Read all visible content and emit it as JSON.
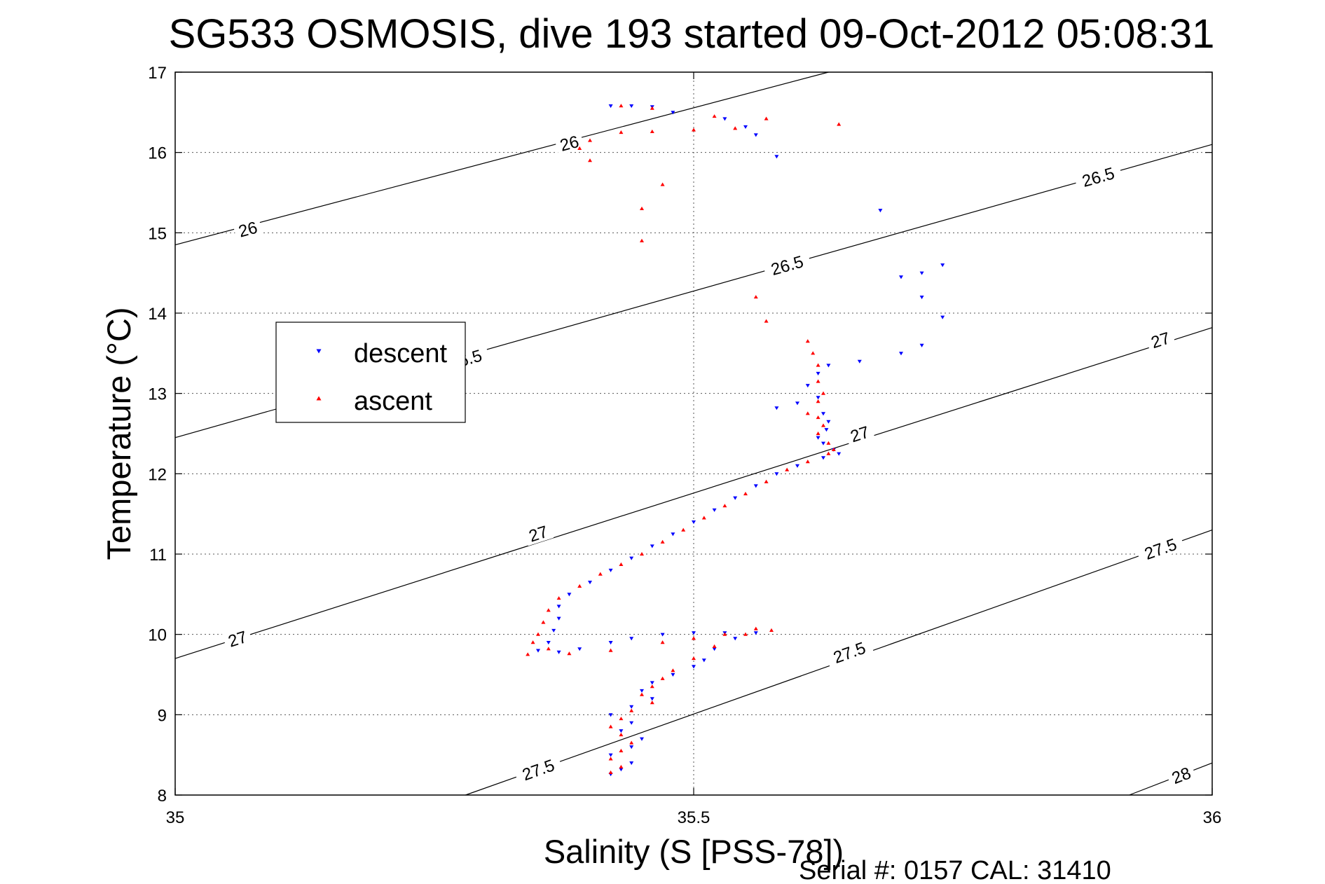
{
  "chart_data": {
    "type": "scatter",
    "title": "SG533 OSMOSIS, dive 193 started 09-Oct-2012 05:08:31",
    "xlabel": "Salinity (S [PSS-78])",
    "ylabel": "Temperature (°C)",
    "footer": "Serial #: 0157  CAL: 31410",
    "xlim": [
      35,
      36
    ],
    "ylim": [
      8,
      17
    ],
    "x_ticks": [
      35,
      35.5,
      36
    ],
    "y_ticks": [
      8,
      9,
      10,
      11,
      12,
      13,
      14,
      15,
      16,
      17
    ],
    "grid": true,
    "legend_position": "left",
    "legend": [
      {
        "label": "descent",
        "color": "#0000ff",
        "marker": "triangle-down"
      },
      {
        "label": "ascent",
        "color": "#ff0000",
        "marker": "triangle-up"
      }
    ],
    "isopycnals": [
      {
        "value": "26",
        "points": [
          [
            35,
            14.85
          ],
          [
            35.63,
            17
          ]
        ],
        "labels": [
          [
            35.07,
            15.05
          ],
          [
            35.38,
            16.12
          ]
        ]
      },
      {
        "value": "26.5",
        "points": [
          [
            35,
            12.45
          ],
          [
            36,
            16.1
          ]
        ],
        "labels": [
          [
            35.28,
            13.43
          ],
          [
            35.59,
            14.6
          ],
          [
            35.89,
            15.7
          ]
        ]
      },
      {
        "value": "27",
        "points": [
          [
            35,
            9.7
          ],
          [
            36,
            13.82
          ]
        ],
        "labels": [
          [
            35.06,
            9.95
          ],
          [
            35.35,
            11.26
          ],
          [
            35.66,
            12.5
          ],
          [
            35.95,
            13.67
          ]
        ]
      },
      {
        "value": "27.5",
        "points": [
          [
            35.28,
            8
          ],
          [
            36,
            11.3
          ]
        ],
        "labels": [
          [
            35.35,
            8.32
          ],
          [
            35.65,
            9.78
          ],
          [
            35.95,
            11.07
          ]
        ]
      },
      {
        "value": "28",
        "points": [
          [
            35.92,
            8
          ],
          [
            36,
            8.4
          ]
        ],
        "labels": [
          [
            35.97,
            8.25
          ]
        ]
      }
    ],
    "series": [
      {
        "name": "descent",
        "color": "#0000ff",
        "marker": "triangle-down",
        "points": [
          [
            35.42,
            16.58
          ],
          [
            35.44,
            16.58
          ],
          [
            35.46,
            16.57
          ],
          [
            35.48,
            16.5
          ],
          [
            35.53,
            16.42
          ],
          [
            35.55,
            16.32
          ],
          [
            35.56,
            16.22
          ],
          [
            35.58,
            15.95
          ],
          [
            35.68,
            15.28
          ],
          [
            35.74,
            14.6
          ],
          [
            35.72,
            14.5
          ],
          [
            35.7,
            14.45
          ],
          [
            35.72,
            14.2
          ],
          [
            35.74,
            13.95
          ],
          [
            35.72,
            13.6
          ],
          [
            35.7,
            13.5
          ],
          [
            35.66,
            13.4
          ],
          [
            35.63,
            13.35
          ],
          [
            35.62,
            13.25
          ],
          [
            35.61,
            13.1
          ],
          [
            35.62,
            12.95
          ],
          [
            35.6,
            12.88
          ],
          [
            35.58,
            12.82
          ],
          [
            35.625,
            12.75
          ],
          [
            35.63,
            12.65
          ],
          [
            35.628,
            12.55
          ],
          [
            35.62,
            12.45
          ],
          [
            35.625,
            12.38
          ],
          [
            35.635,
            12.3
          ],
          [
            35.64,
            12.25
          ],
          [
            35.625,
            12.2
          ],
          [
            35.6,
            12.1
          ],
          [
            35.58,
            12.0
          ],
          [
            35.56,
            11.85
          ],
          [
            35.54,
            11.7
          ],
          [
            35.52,
            11.55
          ],
          [
            35.5,
            11.4
          ],
          [
            35.48,
            11.25
          ],
          [
            35.46,
            11.1
          ],
          [
            35.44,
            10.95
          ],
          [
            35.42,
            10.8
          ],
          [
            35.4,
            10.65
          ],
          [
            35.38,
            10.5
          ],
          [
            35.37,
            10.35
          ],
          [
            35.37,
            10.2
          ],
          [
            35.365,
            10.05
          ],
          [
            35.36,
            9.9
          ],
          [
            35.35,
            9.8
          ],
          [
            35.37,
            9.78
          ],
          [
            35.39,
            9.82
          ],
          [
            35.42,
            9.9
          ],
          [
            35.44,
            9.95
          ],
          [
            35.47,
            10.0
          ],
          [
            35.5,
            10.02
          ],
          [
            35.53,
            10.02
          ],
          [
            35.56,
            10.02
          ],
          [
            35.54,
            9.95
          ],
          [
            35.52,
            9.82
          ],
          [
            35.51,
            9.68
          ],
          [
            35.5,
            9.6
          ],
          [
            35.48,
            9.5
          ],
          [
            35.46,
            9.4
          ],
          [
            35.45,
            9.3
          ],
          [
            35.46,
            9.2
          ],
          [
            35.44,
            9.1
          ],
          [
            35.42,
            9.0
          ],
          [
            35.44,
            8.9
          ],
          [
            35.43,
            8.8
          ],
          [
            35.45,
            8.7
          ],
          [
            35.44,
            8.6
          ],
          [
            35.42,
            8.5
          ],
          [
            35.44,
            8.4
          ],
          [
            35.43,
            8.32
          ],
          [
            35.42,
            8.26
          ]
        ]
      },
      {
        "name": "ascent",
        "color": "#ff0000",
        "marker": "triangle-up",
        "points": [
          [
            35.43,
            16.58
          ],
          [
            35.46,
            16.55
          ],
          [
            35.52,
            16.45
          ],
          [
            35.57,
            16.42
          ],
          [
            35.64,
            16.35
          ],
          [
            35.54,
            16.3
          ],
          [
            35.5,
            16.28
          ],
          [
            35.46,
            16.26
          ],
          [
            35.43,
            16.25
          ],
          [
            35.4,
            16.15
          ],
          [
            35.39,
            16.05
          ],
          [
            35.4,
            15.9
          ],
          [
            35.47,
            15.6
          ],
          [
            35.45,
            15.3
          ],
          [
            35.45,
            14.9
          ],
          [
            35.56,
            14.2
          ],
          [
            35.57,
            13.9
          ],
          [
            35.61,
            13.65
          ],
          [
            35.615,
            13.5
          ],
          [
            35.62,
            13.35
          ],
          [
            35.62,
            13.15
          ],
          [
            35.625,
            13.0
          ],
          [
            35.62,
            12.9
          ],
          [
            35.61,
            12.75
          ],
          [
            35.62,
            12.7
          ],
          [
            35.625,
            12.6
          ],
          [
            35.62,
            12.5
          ],
          [
            35.63,
            12.38
          ],
          [
            35.635,
            12.3
          ],
          [
            35.63,
            12.25
          ],
          [
            35.61,
            12.15
          ],
          [
            35.59,
            12.05
          ],
          [
            35.57,
            11.9
          ],
          [
            35.55,
            11.75
          ],
          [
            35.53,
            11.6
          ],
          [
            35.51,
            11.45
          ],
          [
            35.49,
            11.3
          ],
          [
            35.47,
            11.15
          ],
          [
            35.45,
            11.0
          ],
          [
            35.43,
            10.87
          ],
          [
            35.41,
            10.75
          ],
          [
            35.39,
            10.6
          ],
          [
            35.37,
            10.45
          ],
          [
            35.36,
            10.3
          ],
          [
            35.355,
            10.15
          ],
          [
            35.35,
            10.0
          ],
          [
            35.345,
            9.9
          ],
          [
            35.36,
            9.82
          ],
          [
            35.34,
            9.75
          ],
          [
            35.38,
            9.76
          ],
          [
            35.42,
            9.8
          ],
          [
            35.47,
            9.9
          ],
          [
            35.5,
            9.95
          ],
          [
            35.53,
            10.0
          ],
          [
            35.56,
            10.07
          ],
          [
            35.575,
            10.05
          ],
          [
            35.55,
            10.0
          ],
          [
            35.52,
            9.85
          ],
          [
            35.5,
            9.7
          ],
          [
            35.48,
            9.55
          ],
          [
            35.47,
            9.45
          ],
          [
            35.46,
            9.35
          ],
          [
            35.45,
            9.25
          ],
          [
            35.46,
            9.15
          ],
          [
            35.44,
            9.05
          ],
          [
            35.43,
            8.95
          ],
          [
            35.42,
            8.85
          ],
          [
            35.43,
            8.75
          ],
          [
            35.44,
            8.65
          ],
          [
            35.43,
            8.55
          ],
          [
            35.42,
            8.45
          ],
          [
            35.43,
            8.35
          ],
          [
            35.42,
            8.28
          ]
        ]
      }
    ]
  }
}
